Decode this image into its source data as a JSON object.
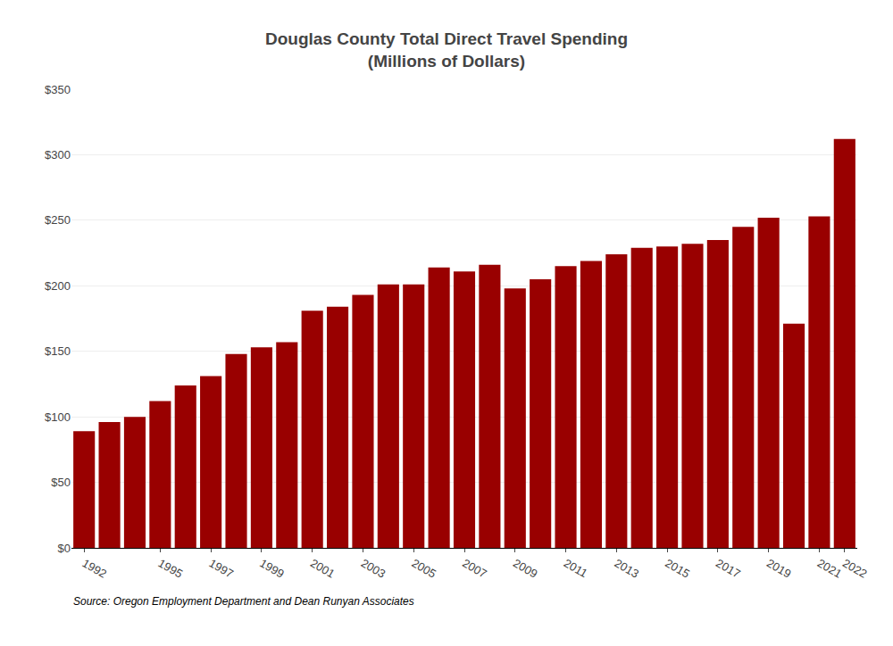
{
  "chart_data": {
    "type": "bar",
    "title": "Douglas County Total Direct Travel Spending\n(Millions of Dollars)",
    "categories": [
      "1992",
      null,
      null,
      "1995",
      null,
      "1997",
      null,
      "1999",
      null,
      "2001",
      null,
      "2003",
      null,
      "2005",
      null,
      "2007",
      null,
      "2009",
      null,
      "2011",
      null,
      "2013",
      null,
      "2015",
      null,
      "2017",
      null,
      "2019",
      null,
      "2021",
      "2022"
    ],
    "values": [
      89,
      96,
      100,
      112,
      124,
      131,
      148,
      153,
      157,
      181,
      184,
      193,
      201,
      201,
      214,
      211,
      216,
      198,
      205,
      215,
      219,
      224,
      229,
      230,
      232,
      235,
      245,
      252,
      171,
      253,
      312
    ],
    "color": "#990000",
    "ylim": [
      0,
      350
    ],
    "yticks": [
      {
        "value": 0,
        "label": "$0"
      },
      {
        "value": 50,
        "label": "$50"
      },
      {
        "value": 100,
        "label": "$100"
      },
      {
        "value": 150,
        "label": "$150"
      },
      {
        "value": 200,
        "label": "$200"
      },
      {
        "value": 250,
        "label": "$250"
      },
      {
        "value": 300,
        "label": "$300"
      },
      {
        "value": 350,
        "label": "$350"
      }
    ],
    "grid": true,
    "annotations": [
      "Source: Oregon Employment Department and Dean Runyan Associates"
    ]
  }
}
